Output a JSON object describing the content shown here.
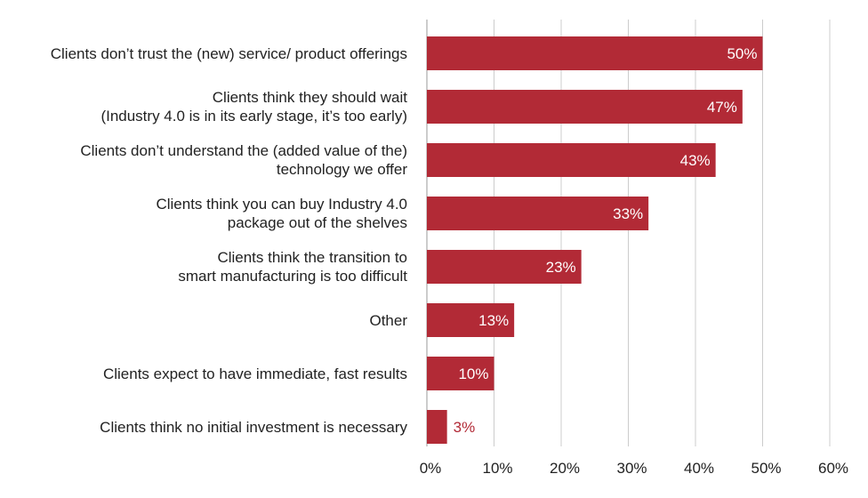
{
  "chart_data": {
    "type": "bar",
    "orientation": "horizontal",
    "title": "",
    "xlabel": "",
    "ylabel": "",
    "xlim": [
      0,
      60
    ],
    "grid": true,
    "bar_color": "#b22a36",
    "data_label_color_inside": "#ffffff",
    "data_label_color_outside": "#b22a36",
    "gridline_color": "#cccccc",
    "x_ticks": [
      {
        "value": 0,
        "label": "0%"
      },
      {
        "value": 10,
        "label": "10%"
      },
      {
        "value": 20,
        "label": "20%"
      },
      {
        "value": 30,
        "label": "30%"
      },
      {
        "value": 40,
        "label": "40%"
      },
      {
        "value": 50,
        "label": "50%"
      },
      {
        "value": 60,
        "label": "60%"
      }
    ],
    "categories": [
      {
        "lines": [
          "Clients don’t trust the (new) service/ product offerings"
        ],
        "value": 50,
        "label": "50%"
      },
      {
        "lines": [
          "Clients think they should wait",
          "(Industry 4.0 is in its early stage, it’s too early)"
        ],
        "value": 47,
        "label": "47%"
      },
      {
        "lines": [
          "Clients don’t understand the (added value of the)",
          "technology we offer"
        ],
        "value": 43,
        "label": "43%"
      },
      {
        "lines": [
          "Clients think you can buy Industry 4.0",
          "package out of the shelves"
        ],
        "value": 33,
        "label": "33%"
      },
      {
        "lines": [
          "Clients think the transition to",
          "smart manufacturing is too difficult"
        ],
        "value": 23,
        "label": "23%"
      },
      {
        "lines": [
          "Other"
        ],
        "value": 13,
        "label": "13%"
      },
      {
        "lines": [
          "Clients expect to have immediate, fast results"
        ],
        "value": 10,
        "label": "10%"
      },
      {
        "lines": [
          "Clients think no initial investment is necessary"
        ],
        "value": 3,
        "label": "3%"
      }
    ]
  }
}
